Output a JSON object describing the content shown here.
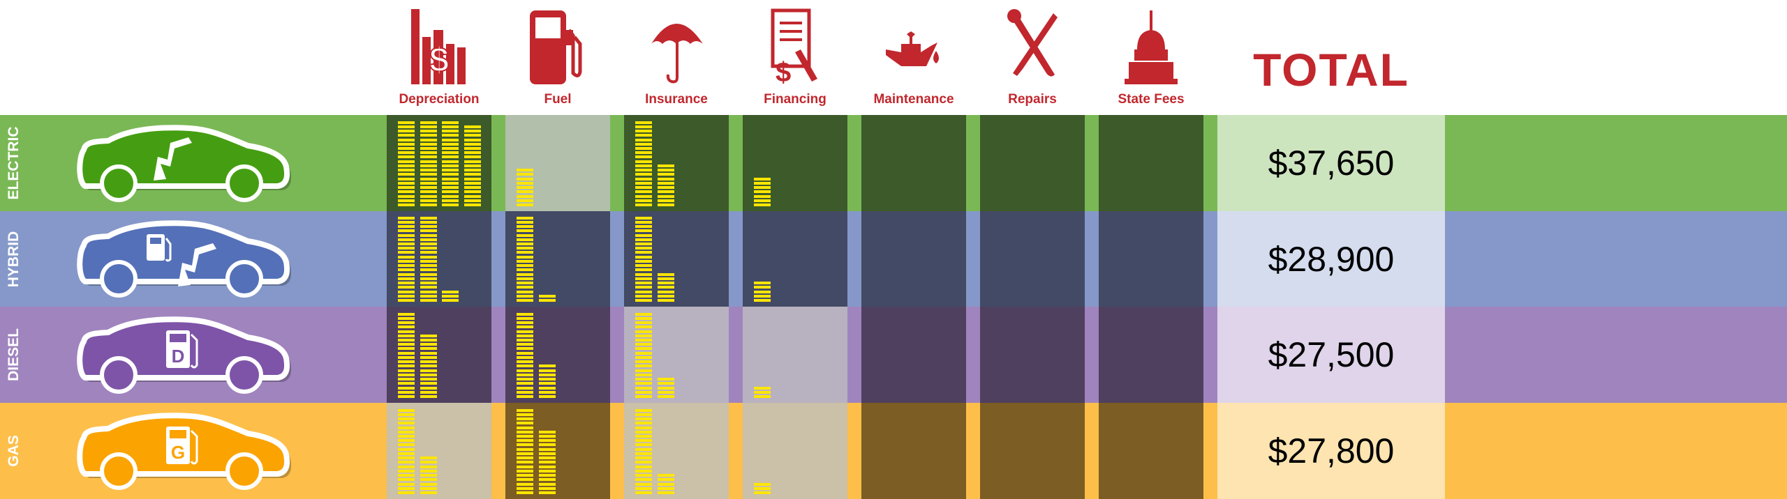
{
  "header": {
    "categories": [
      {
        "label": "Depreciation",
        "icon": "depreciation-chart-dollar-icon"
      },
      {
        "label": "Fuel",
        "icon": "fuel-pump-icon"
      },
      {
        "label": "Insurance",
        "icon": "umbrella-icon"
      },
      {
        "label": "Financing",
        "icon": "document-dollar-pen-icon"
      },
      {
        "label": "Maintenance",
        "icon": "oil-can-icon"
      },
      {
        "label": "Repairs",
        "icon": "wrench-screwdriver-icon"
      },
      {
        "label": "State Fees",
        "icon": "capitol-building-icon"
      }
    ],
    "total_label": "TOTAL",
    "accent": "#c1272d"
  },
  "chart_data": {
    "type": "table",
    "note_units": "",
    "columns": [
      "Depreciation",
      "Fuel",
      "Insurance",
      "Financing",
      "Maintenance",
      "Repairs",
      "State Fees",
      "TOTAL"
    ],
    "bar_color": "#ffe600",
    "rows": [
      {
        "label": "ELECTRIC",
        "total": "$37,650",
        "colors": {
          "bg": "#7ab855",
          "dark": "#3c5a2a",
          "light": "#b2bfab",
          "total": "#cde5bf",
          "car": "#459e12"
        },
        "car_icons": [
          "lightning-bolt"
        ],
        "cells": [
          {
            "segments": [
              20,
              20,
              20,
              19
            ],
            "highlight": true
          },
          {
            "segments": [
              9
            ],
            "highlight": false
          },
          {
            "segments": [
              20,
              10
            ],
            "highlight": true
          },
          {
            "segments": [
              7
            ],
            "highlight": true
          },
          {
            "segments": [],
            "highlight": true
          },
          {
            "segments": [],
            "highlight": true
          },
          {
            "segments": [],
            "highlight": true
          }
        ]
      },
      {
        "label": "HYBRID",
        "total": "$28,900",
        "colors": {
          "bg": "#8598c9",
          "dark": "#434a65",
          "light": "#c5cbe0",
          "total": "#d4dcee",
          "car": "#5470b8"
        },
        "car_icons": [
          "fuel-pump",
          "lightning-bolt"
        ],
        "cells": [
          {
            "segments": [
              20,
              20,
              3
            ],
            "highlight": true
          },
          {
            "segments": [
              20,
              2
            ],
            "highlight": true
          },
          {
            "segments": [
              20,
              7
            ],
            "highlight": true
          },
          {
            "segments": [
              5
            ],
            "highlight": true
          },
          {
            "segments": [],
            "highlight": true
          },
          {
            "segments": [],
            "highlight": true
          },
          {
            "segments": [],
            "highlight": true
          }
        ]
      },
      {
        "label": "DIESEL",
        "total": "$27,500",
        "colors": {
          "bg": "#a084be",
          "dark": "#4f405f",
          "light": "#b8b2c0",
          "total": "#dfd4ea",
          "car": "#7e54a8"
        },
        "car_icons": [
          "fuel-pump-d"
        ],
        "pump_letter": "D",
        "cells": [
          {
            "segments": [
              20,
              15
            ],
            "highlight": true
          },
          {
            "segments": [
              20,
              8
            ],
            "highlight": true
          },
          {
            "segments": [
              20,
              5
            ],
            "highlight": false
          },
          {
            "segments": [
              3
            ],
            "highlight": false
          },
          {
            "segments": [],
            "highlight": true
          },
          {
            "segments": [],
            "highlight": true
          },
          {
            "segments": [],
            "highlight": true
          }
        ]
      },
      {
        "label": "GAS",
        "total": "$27,800",
        "colors": {
          "bg": "#fdbf4a",
          "dark": "#7c5d23",
          "light": "#cbc0a8",
          "total": "#fde4b0",
          "car": "#fba300"
        },
        "car_icons": [
          "fuel-pump-g"
        ],
        "pump_letter": "G",
        "cells": [
          {
            "segments": [
              20,
              9
            ],
            "highlight": false
          },
          {
            "segments": [
              20,
              15
            ],
            "highlight": true
          },
          {
            "segments": [
              20,
              5
            ],
            "highlight": false
          },
          {
            "segments": [
              3
            ],
            "highlight": false
          },
          {
            "segments": [],
            "highlight": true
          },
          {
            "segments": [],
            "highlight": true
          },
          {
            "segments": [],
            "highlight": true
          }
        ]
      }
    ]
  }
}
